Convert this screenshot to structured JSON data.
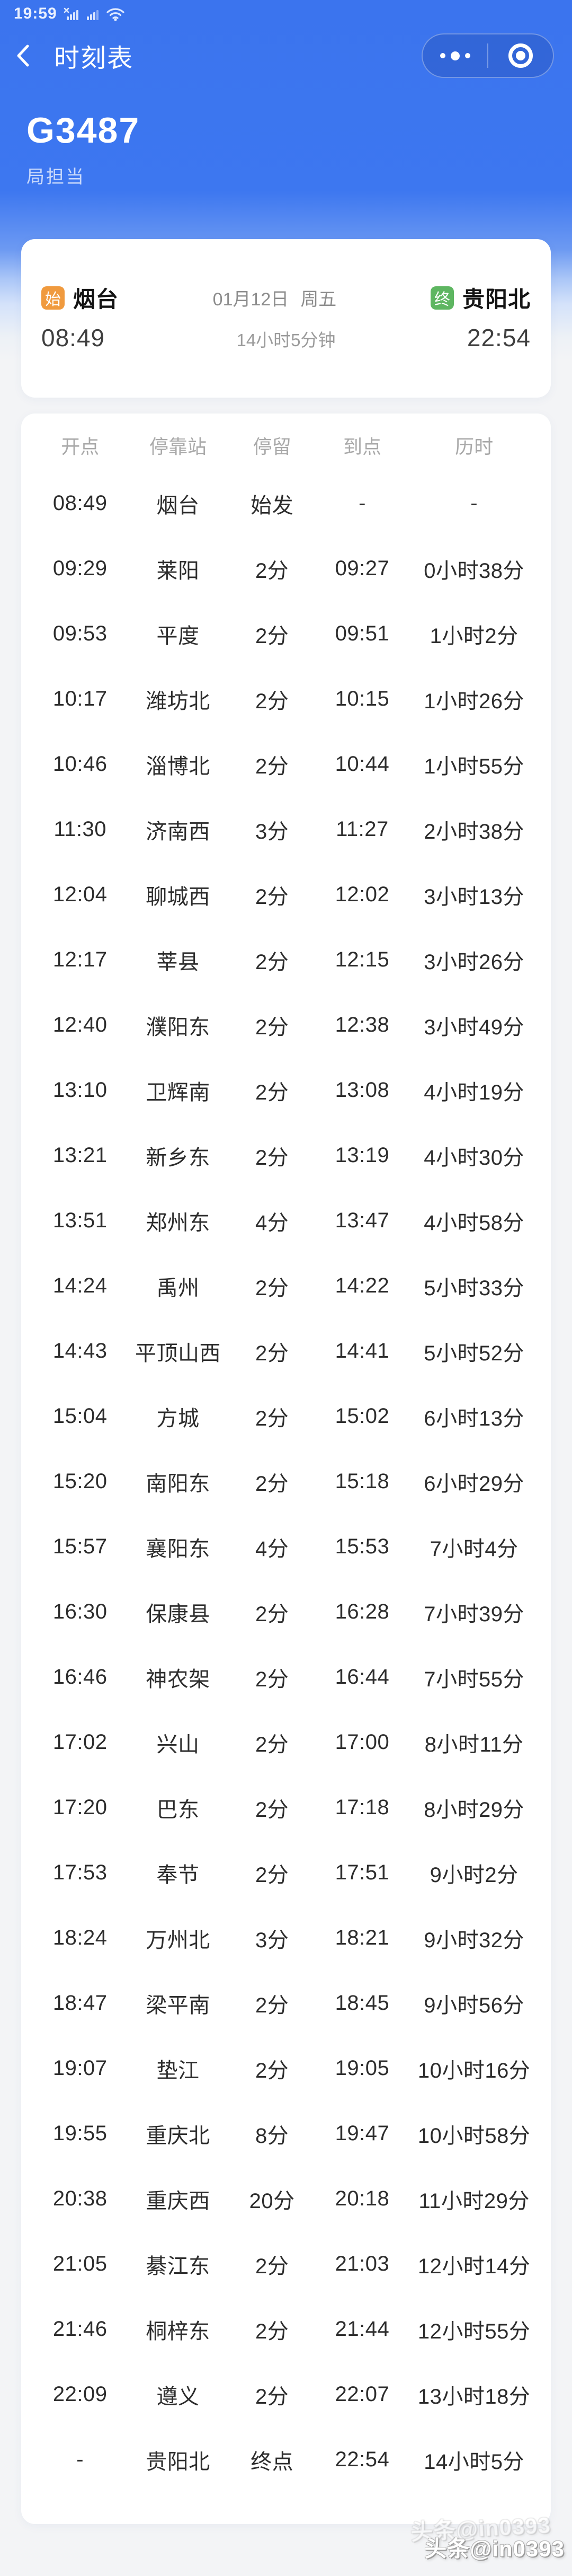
{
  "colors": {
    "accent_blue": "#3B74EE",
    "origin_badge": "#F09A3E",
    "dest_badge": "#5EB661"
  },
  "status_bar": {
    "time": "19:59",
    "icons": [
      "no-service-signal-icon",
      "signal-bars-icon",
      "wifi-icon"
    ]
  },
  "nav": {
    "back_icon": "chevron-left",
    "title": "时刻表",
    "capsule": {
      "more_icon": "three-dots",
      "close_icon": "circle-target"
    }
  },
  "train": {
    "number": "G3487",
    "operator": "局担当"
  },
  "summary": {
    "origin_badge": "始",
    "origin": "烟台",
    "depart_time": "08:49",
    "date": "01月12日",
    "weekday": "周五",
    "duration": "14小时5分钟",
    "dest_badge": "终",
    "destination": "贵阳北",
    "arrive_time": "22:54"
  },
  "table": {
    "headers": [
      "开点",
      "停靠站",
      "停留",
      "到点",
      "历时"
    ],
    "rows": [
      [
        "08:49",
        "烟台",
        "始发",
        "-",
        "-"
      ],
      [
        "09:29",
        "莱阳",
        "2分",
        "09:27",
        "0小时38分"
      ],
      [
        "09:53",
        "平度",
        "2分",
        "09:51",
        "1小时2分"
      ],
      [
        "10:17",
        "潍坊北",
        "2分",
        "10:15",
        "1小时26分"
      ],
      [
        "10:46",
        "淄博北",
        "2分",
        "10:44",
        "1小时55分"
      ],
      [
        "11:30",
        "济南西",
        "3分",
        "11:27",
        "2小时38分"
      ],
      [
        "12:04",
        "聊城西",
        "2分",
        "12:02",
        "3小时13分"
      ],
      [
        "12:17",
        "莘县",
        "2分",
        "12:15",
        "3小时26分"
      ],
      [
        "12:40",
        "濮阳东",
        "2分",
        "12:38",
        "3小时49分"
      ],
      [
        "13:10",
        "卫辉南",
        "2分",
        "13:08",
        "4小时19分"
      ],
      [
        "13:21",
        "新乡东",
        "2分",
        "13:19",
        "4小时30分"
      ],
      [
        "13:51",
        "郑州东",
        "4分",
        "13:47",
        "4小时58分"
      ],
      [
        "14:24",
        "禹州",
        "2分",
        "14:22",
        "5小时33分"
      ],
      [
        "14:43",
        "平顶山西",
        "2分",
        "14:41",
        "5小时52分"
      ],
      [
        "15:04",
        "方城",
        "2分",
        "15:02",
        "6小时13分"
      ],
      [
        "15:20",
        "南阳东",
        "2分",
        "15:18",
        "6小时29分"
      ],
      [
        "15:57",
        "襄阳东",
        "4分",
        "15:53",
        "7小时4分"
      ],
      [
        "16:30",
        "保康县",
        "2分",
        "16:28",
        "7小时39分"
      ],
      [
        "16:46",
        "神农架",
        "2分",
        "16:44",
        "7小时55分"
      ],
      [
        "17:02",
        "兴山",
        "2分",
        "17:00",
        "8小时11分"
      ],
      [
        "17:20",
        "巴东",
        "2分",
        "17:18",
        "8小时29分"
      ],
      [
        "17:53",
        "奉节",
        "2分",
        "17:51",
        "9小时2分"
      ],
      [
        "18:24",
        "万州北",
        "3分",
        "18:21",
        "9小时32分"
      ],
      [
        "18:47",
        "梁平南",
        "2分",
        "18:45",
        "9小时56分"
      ],
      [
        "19:07",
        "垫江",
        "2分",
        "19:05",
        "10小时16分"
      ],
      [
        "19:55",
        "重庆北",
        "8分",
        "19:47",
        "10小时58分"
      ],
      [
        "20:38",
        "重庆西",
        "20分",
        "20:18",
        "11小时29分"
      ],
      [
        "21:05",
        "綦江东",
        "2分",
        "21:03",
        "12小时14分"
      ],
      [
        "21:46",
        "桐梓东",
        "2分",
        "21:44",
        "12小时55分"
      ],
      [
        "22:09",
        "遵义",
        "2分",
        "22:07",
        "13小时18分"
      ],
      [
        "-",
        "贵阳北",
        "终点",
        "22:54",
        "14小时5分"
      ]
    ]
  },
  "watermark": {
    "text": "头条@in0393"
  }
}
